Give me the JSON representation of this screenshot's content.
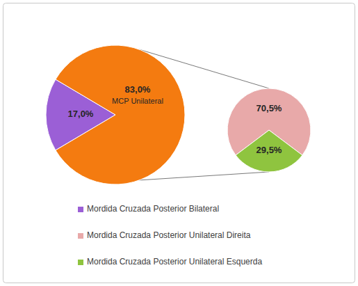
{
  "chart_data": [
    {
      "type": "pie",
      "categories": [
        "Mordida Cruzada Posterior Bilateral",
        "MCP Unilateral"
      ],
      "values": [
        17.0,
        83.0
      ],
      "value_labels": [
        "17,0%",
        "83,0%"
      ],
      "colors": [
        "#9b5fd6",
        "#f47b10"
      ],
      "data_labels": true,
      "legend": "bottom"
    },
    {
      "type": "pie",
      "categories": [
        "Mordida Cruzada Posterior Unilateral Direita",
        "Mordida Cruzada Posterior Unilateral Esquerda"
      ],
      "values": [
        70.5,
        29.5
      ],
      "value_labels": [
        "70,5%",
        "29,5%"
      ],
      "colors": [
        "#e8a9a9",
        "#8fc43f"
      ],
      "data_labels": true,
      "legend": "bottom"
    }
  ]
}
